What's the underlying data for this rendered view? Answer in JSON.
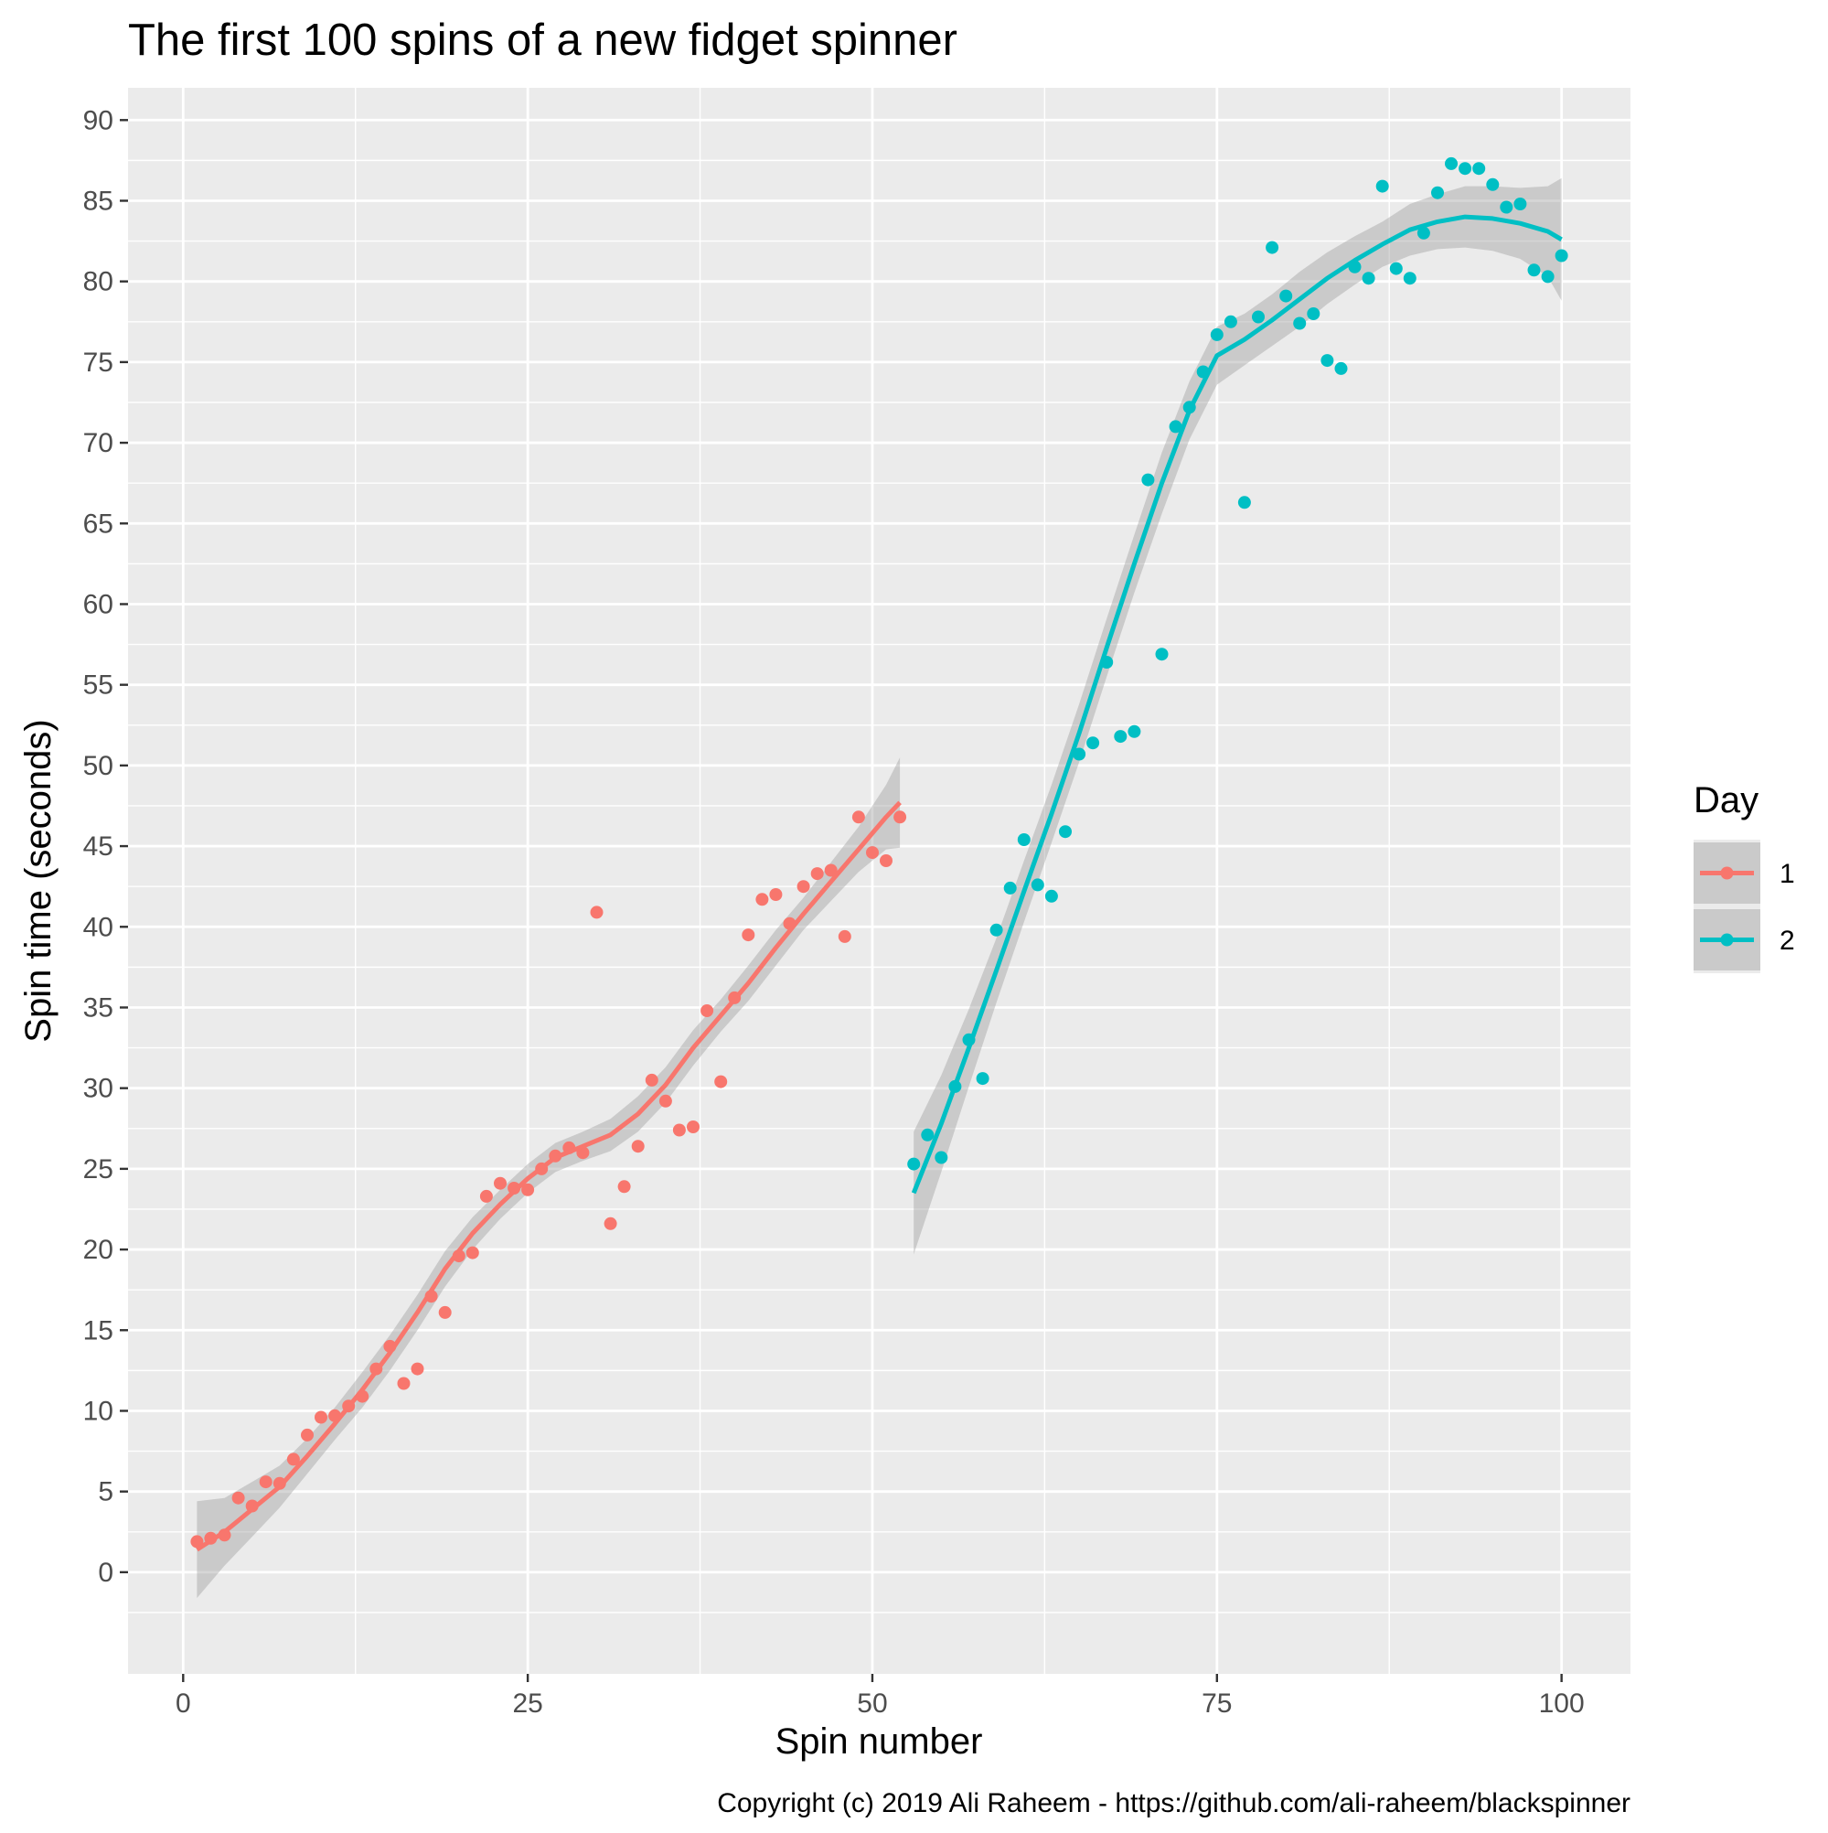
{
  "chart_data": {
    "type": "scatter",
    "title": "The first 100 spins of a new fidget spinner",
    "xlabel": "Spin number",
    "ylabel": "Spin time (seconds)",
    "caption": "Copyright (c) 2019 Ali Raheem - https://github.com/ali-raheem/blackspinner",
    "xlim": [
      -4,
      105
    ],
    "ylim": [
      -6.3,
      92
    ],
    "x_ticks": [
      0,
      25,
      50,
      75,
      100
    ],
    "y_ticks": [
      0,
      5,
      10,
      15,
      20,
      25,
      30,
      35,
      40,
      45,
      50,
      55,
      60,
      65,
      70,
      75,
      80,
      85,
      90
    ],
    "grid": true,
    "background": "#ebebeb",
    "legend": {
      "title": "Day",
      "position": "right"
    },
    "smoother": "loess with confidence band",
    "series": [
      {
        "name": "1",
        "color": "#F8766D",
        "x": [
          1,
          2,
          3,
          4,
          5,
          6,
          7,
          8,
          9,
          10,
          11,
          12,
          13,
          14,
          15,
          16,
          17,
          18,
          19,
          20,
          21,
          22,
          23,
          24,
          25,
          26,
          27,
          28,
          29,
          30,
          31,
          32,
          33,
          34,
          35,
          36,
          37,
          38,
          39,
          40,
          41,
          42,
          43,
          44,
          45,
          46,
          47,
          48,
          49,
          50,
          51,
          52
        ],
        "y": [
          1.9,
          2.1,
          2.3,
          4.6,
          4.1,
          5.6,
          5.5,
          7.0,
          8.5,
          9.6,
          9.7,
          10.3,
          10.9,
          12.6,
          14.0,
          11.7,
          12.6,
          17.1,
          16.1,
          19.6,
          19.8,
          23.3,
          24.1,
          23.8,
          23.7,
          25.0,
          25.8,
          26.3,
          26.0,
          40.9,
          21.6,
          23.9,
          26.4,
          30.5,
          29.2,
          27.4,
          27.6,
          34.8,
          30.4,
          35.6,
          39.5,
          41.7,
          42.0,
          40.2,
          42.5,
          43.3,
          43.5,
          39.4,
          46.8,
          44.6,
          44.1,
          46.8
        ],
        "fit_x": [
          1,
          3,
          5,
          7,
          9,
          11,
          13,
          15,
          17,
          19,
          21,
          23,
          25,
          27,
          29,
          31,
          33,
          35,
          37,
          39,
          41,
          43,
          45,
          47,
          49,
          51,
          52
        ],
        "fit_y": [
          1.4,
          2.5,
          3.9,
          5.3,
          7.2,
          9.2,
          11.3,
          13.6,
          16.1,
          18.8,
          21.0,
          22.8,
          24.4,
          25.7,
          26.4,
          27.1,
          28.4,
          30.2,
          32.5,
          34.5,
          36.5,
          38.7,
          40.8,
          42.8,
          44.8,
          46.8,
          47.7
        ],
        "fit_lo": [
          -1.6,
          0.4,
          2.2,
          4.0,
          6.1,
          8.2,
          10.2,
          12.5,
          15.0,
          17.7,
          20.0,
          21.9,
          23.5,
          24.8,
          25.5,
          26.1,
          27.3,
          29.1,
          31.4,
          33.5,
          35.4,
          37.6,
          39.8,
          41.6,
          43.4,
          44.8,
          44.9
        ],
        "fit_hi": [
          4.4,
          4.6,
          5.6,
          6.6,
          8.3,
          10.2,
          12.4,
          14.7,
          17.2,
          19.9,
          22.0,
          23.7,
          25.3,
          26.6,
          27.3,
          28.1,
          29.5,
          31.3,
          33.6,
          35.5,
          37.6,
          39.8,
          41.8,
          44.0,
          46.2,
          48.8,
          50.5
        ]
      },
      {
        "name": "2",
        "color": "#00BFC4",
        "x": [
          53,
          54,
          55,
          56,
          57,
          58,
          59,
          60,
          61,
          62,
          63,
          64,
          65,
          66,
          67,
          68,
          69,
          70,
          71,
          72,
          73,
          74,
          75,
          76,
          77,
          78,
          79,
          80,
          81,
          82,
          83,
          84,
          85,
          86,
          87,
          88,
          89,
          90,
          91,
          92,
          93,
          94,
          95,
          96,
          97,
          98,
          99,
          100
        ],
        "y": [
          25.3,
          27.1,
          25.7,
          30.1,
          33.0,
          30.6,
          39.8,
          42.4,
          45.4,
          42.6,
          41.9,
          45.9,
          50.7,
          51.4,
          56.4,
          51.8,
          52.1,
          67.7,
          56.9,
          71.0,
          72.2,
          74.4,
          76.7,
          77.5,
          66.3,
          77.8,
          82.1,
          79.1,
          77.4,
          78.0,
          75.1,
          74.6,
          80.9,
          80.2,
          85.9,
          80.8,
          80.2,
          83.0,
          85.5,
          87.3,
          87.0,
          87.0,
          86.0,
          84.6,
          84.8,
          80.7,
          80.3,
          81.6
        ],
        "fit_x": [
          53,
          55,
          57,
          59,
          61,
          63,
          65,
          67,
          69,
          71,
          73,
          75,
          77,
          79,
          81,
          83,
          85,
          87,
          89,
          91,
          93,
          95,
          97,
          99,
          100
        ],
        "fit_y": [
          23.5,
          27.8,
          32.5,
          37.3,
          42.2,
          47.0,
          52.0,
          57.3,
          62.5,
          67.5,
          72.0,
          75.4,
          76.4,
          77.6,
          78.9,
          80.2,
          81.3,
          82.3,
          83.2,
          83.7,
          84.0,
          83.9,
          83.6,
          83.1,
          82.6
        ],
        "fit_lo": [
          19.7,
          24.8,
          30.1,
          35.3,
          40.3,
          45.2,
          50.2,
          55.5,
          60.7,
          65.6,
          70.2,
          73.6,
          74.8,
          76.0,
          77.2,
          78.6,
          79.8,
          80.9,
          81.6,
          82.0,
          82.1,
          81.9,
          81.4,
          80.3,
          78.8
        ],
        "fit_hi": [
          27.3,
          30.8,
          34.9,
          39.3,
          44.1,
          48.8,
          53.8,
          59.1,
          64.3,
          69.4,
          73.8,
          77.2,
          78.0,
          79.2,
          80.6,
          81.8,
          82.8,
          83.7,
          84.8,
          85.4,
          85.9,
          85.9,
          85.8,
          85.9,
          86.4
        ]
      }
    ]
  }
}
